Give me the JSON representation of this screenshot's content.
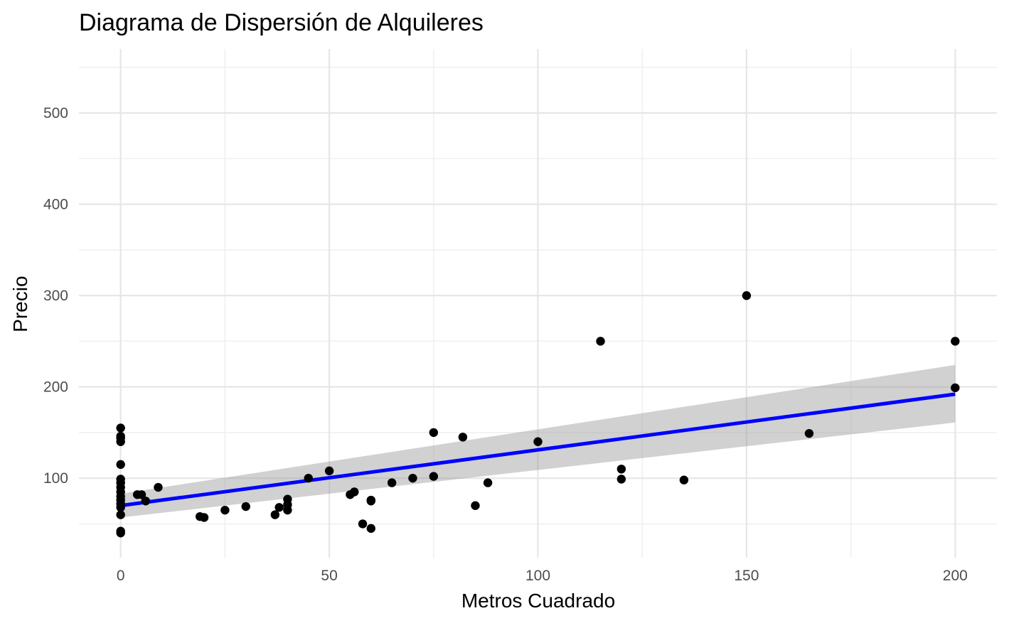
{
  "chart_data": {
    "type": "scatter",
    "title": "Diagrama de Dispersión de Alquileres",
    "xlabel": "Metros Cuadrado",
    "ylabel": "Precio",
    "xlim": [
      -10,
      210
    ],
    "ylim": [
      13,
      570
    ],
    "x_ticks": [
      0,
      50,
      100,
      150,
      200
    ],
    "x_minor_ticks": [
      25,
      75,
      125,
      175
    ],
    "y_ticks": [
      100,
      200,
      300,
      400,
      500
    ],
    "y_minor_ticks": [
      50,
      150,
      250,
      350,
      450,
      550
    ],
    "grid": true,
    "points": [
      {
        "x": 0,
        "y": 155
      },
      {
        "x": 0,
        "y": 146
      },
      {
        "x": 0,
        "y": 144
      },
      {
        "x": 0,
        "y": 140
      },
      {
        "x": 0,
        "y": 115
      },
      {
        "x": 0,
        "y": 99
      },
      {
        "x": 0,
        "y": 95
      },
      {
        "x": 0,
        "y": 90
      },
      {
        "x": 0,
        "y": 85
      },
      {
        "x": 0,
        "y": 80
      },
      {
        "x": 0,
        "y": 76
      },
      {
        "x": 0,
        "y": 72
      },
      {
        "x": 0,
        "y": 68
      },
      {
        "x": 0,
        "y": 60
      },
      {
        "x": 0,
        "y": 42
      },
      {
        "x": 0,
        "y": 40
      },
      {
        "x": 4,
        "y": 82
      },
      {
        "x": 5,
        "y": 82
      },
      {
        "x": 6,
        "y": 75
      },
      {
        "x": 9,
        "y": 90
      },
      {
        "x": 19,
        "y": 58
      },
      {
        "x": 20,
        "y": 57
      },
      {
        "x": 25,
        "y": 65
      },
      {
        "x": 30,
        "y": 69
      },
      {
        "x": 37,
        "y": 60
      },
      {
        "x": 38,
        "y": 68
      },
      {
        "x": 40,
        "y": 65
      },
      {
        "x": 40,
        "y": 71
      },
      {
        "x": 40,
        "y": 77
      },
      {
        "x": 45,
        "y": 100
      },
      {
        "x": 50,
        "y": 108
      },
      {
        "x": 55,
        "y": 82
      },
      {
        "x": 56,
        "y": 85
      },
      {
        "x": 58,
        "y": 50
      },
      {
        "x": 60,
        "y": 45
      },
      {
        "x": 60,
        "y": 75
      },
      {
        "x": 60,
        "y": 76
      },
      {
        "x": 65,
        "y": 95
      },
      {
        "x": 70,
        "y": 100
      },
      {
        "x": 75,
        "y": 102
      },
      {
        "x": 75,
        "y": 150
      },
      {
        "x": 82,
        "y": 145
      },
      {
        "x": 85,
        "y": 70
      },
      {
        "x": 88,
        "y": 95
      },
      {
        "x": 100,
        "y": 140
      },
      {
        "x": 115,
        "y": 250
      },
      {
        "x": 120,
        "y": 110
      },
      {
        "x": 120,
        "y": 99
      },
      {
        "x": 135,
        "y": 98
      },
      {
        "x": 150,
        "y": 300
      },
      {
        "x": 165,
        "y": 149
      },
      {
        "x": 200,
        "y": 250
      },
      {
        "x": 200,
        "y": 199
      }
    ],
    "regression": {
      "method": "lm",
      "x_range": [
        0,
        200
      ],
      "intercept": 70,
      "slope": 0.61,
      "ci_start": [
        57,
        83
      ],
      "ci_end": [
        161,
        224
      ],
      "line_color": "#0000ff",
      "band_color": "#999999"
    },
    "point_color": "#000000"
  }
}
